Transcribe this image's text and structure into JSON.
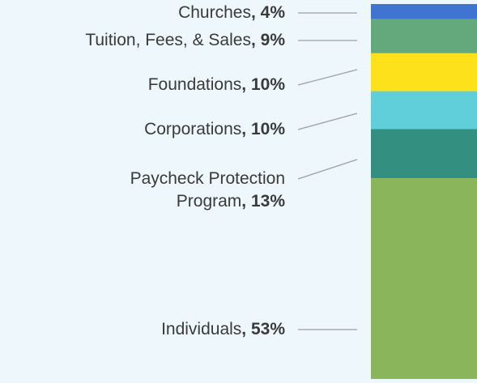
{
  "chart_data": {
    "type": "stacked-bar",
    "categories": [
      "Churches",
      "Tuition, Fees, & Sales",
      "Foundations",
      "Corporations",
      "Paycheck Protection Program",
      "Individuals"
    ],
    "values": [
      4,
      9,
      10,
      10,
      13,
      53
    ],
    "value_labels": [
      ", 4%",
      ", 9%",
      ", 10%",
      ", 10%",
      ", 13%",
      ", 53%"
    ],
    "colors": [
      "#3f74d1",
      "#63a97b",
      "#fde21b",
      "#61cfd9",
      "#339080",
      "#8ab55a"
    ]
  }
}
